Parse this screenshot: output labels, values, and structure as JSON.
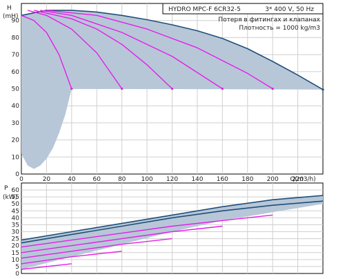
{
  "header": {
    "product": "HYDRO MPC-F 6CR32-5",
    "supply": "3* 400 V, 50 Hz",
    "note_line1": "Потеря в фитингах и клапанах",
    "note_line2": "Плотность = 1000 kg/m3"
  },
  "colors": {
    "envelope": "#b7c7d8",
    "max_curve": "#1f4e79",
    "member_curve": "#e61ee6",
    "grid": "#cfcfcf",
    "frame": "#000000",
    "axis_text": "#222222"
  },
  "chart_data": [
    {
      "type": "line",
      "name_id": "head-curve",
      "xlabel": "Q(m3/h)",
      "ylabel": "H",
      "ylabel_unit": "(mH)",
      "xlim": [
        0,
        240
      ],
      "ylim": [
        0,
        100
      ],
      "xticks": [
        0,
        20,
        40,
        60,
        80,
        100,
        120,
        140,
        160,
        180,
        200,
        220
      ],
      "xtick_labels": [
        "0",
        "20",
        "40",
        "60",
        "80",
        "100",
        "120",
        "140",
        "160",
        "180",
        "200",
        "220"
      ],
      "yticks": [
        0,
        10,
        20,
        30,
        40,
        50,
        60,
        70,
        80,
        90
      ],
      "ytick_labels": [
        "0",
        "10",
        "20",
        "30",
        "40",
        "50",
        "60",
        "70",
        "80",
        "90"
      ],
      "grid": true,
      "series": [
        {
          "role": "max",
          "x": [
            0,
            20,
            40,
            60,
            80,
            100,
            120,
            140,
            160,
            180,
            200,
            220,
            240
          ],
          "y": [
            93,
            96,
            96,
            95,
            93,
            90.5,
            87.5,
            84,
            79.5,
            73.5,
            66,
            58,
            49.5
          ]
        },
        {
          "role": "pump",
          "x": [
            0,
            10,
            20,
            30,
            40
          ],
          "y": [
            93,
            90,
            83,
            70,
            50
          ]
        },
        {
          "role": "pump",
          "x": [
            5,
            20,
            40,
            60,
            80
          ],
          "y": [
            96,
            93,
            85,
            71,
            50
          ]
        },
        {
          "role": "pump",
          "x": [
            10,
            40,
            60,
            80,
            100,
            120
          ],
          "y": [
            96,
            91,
            85,
            76,
            64,
            50
          ]
        },
        {
          "role": "pump",
          "x": [
            15,
            40,
            80,
            120,
            160
          ],
          "y": [
            96,
            93,
            83,
            69,
            50
          ]
        },
        {
          "role": "pump",
          "x": [
            20,
            60,
            100,
            140,
            180,
            200
          ],
          "y": [
            96,
            93,
            85,
            74,
            59,
            50
          ]
        }
      ],
      "envelope": {
        "upper": {
          "x": [
            0,
            20,
            40,
            60,
            80,
            100,
            120,
            140,
            160,
            180,
            200,
            220,
            240
          ],
          "y": [
            93,
            96,
            96,
            95,
            93,
            90.5,
            87.5,
            84,
            79.5,
            73.5,
            66,
            58,
            49.5
          ]
        },
        "lower": {
          "x": [
            240,
            40,
            35,
            30,
            25,
            20,
            15,
            10,
            5,
            0
          ],
          "y": [
            49.5,
            50,
            35,
            24,
            15,
            9,
            5,
            3,
            5,
            12
          ]
        }
      }
    },
    {
      "type": "line",
      "name_id": "power-curve",
      "xlabel": "",
      "ylabel": "P",
      "ylabel_unit": "(kW)",
      "xlim": [
        0,
        240
      ],
      "ylim": [
        0,
        65
      ],
      "yticks": [
        0,
        5,
        10,
        15,
        20,
        25,
        30,
        35,
        40,
        45,
        50,
        55,
        60
      ],
      "ytick_labels": [
        "0",
        "5",
        "10",
        "15",
        "20",
        "25",
        "30",
        "35",
        "40",
        "45",
        "50",
        "55",
        "60"
      ],
      "grid": true,
      "series": [
        {
          "role": "max",
          "x": [
            0,
            40,
            80,
            100,
            120,
            160,
            200,
            240
          ],
          "y": [
            24,
            30,
            36,
            39,
            42,
            48,
            53,
            56
          ]
        },
        {
          "role": "max",
          "x": [
            0,
            40,
            80,
            120,
            160,
            200,
            240
          ],
          "y": [
            22,
            28,
            34,
            40,
            45,
            49,
            52
          ]
        },
        {
          "role": "pump",
          "x": [
            0,
            40,
            80,
            120,
            160,
            200
          ],
          "y": [
            19,
            24,
            29,
            34,
            38,
            42
          ]
        },
        {
          "role": "pump",
          "x": [
            0,
            40,
            80,
            120,
            160
          ],
          "y": [
            15,
            20,
            25,
            30,
            34
          ]
        },
        {
          "role": "pump",
          "x": [
            0,
            40,
            80,
            120
          ],
          "y": [
            11,
            16,
            21,
            25
          ]
        },
        {
          "role": "pump",
          "x": [
            0,
            40,
            80
          ],
          "y": [
            7,
            12,
            16
          ]
        },
        {
          "role": "pump",
          "x": [
            0,
            40
          ],
          "y": [
            3,
            7
          ]
        }
      ],
      "envelope": {
        "upper": {
          "x": [
            0,
            40,
            80,
            100,
            120,
            160,
            200,
            240
          ],
          "y": [
            24,
            30,
            36,
            39,
            42,
            48,
            53,
            56
          ]
        },
        "lower": {
          "x": [
            240,
            200,
            160,
            120,
            80,
            40,
            0
          ],
          "y": [
            50,
            44,
            38,
            30,
            21,
            12,
            3
          ]
        }
      }
    }
  ]
}
